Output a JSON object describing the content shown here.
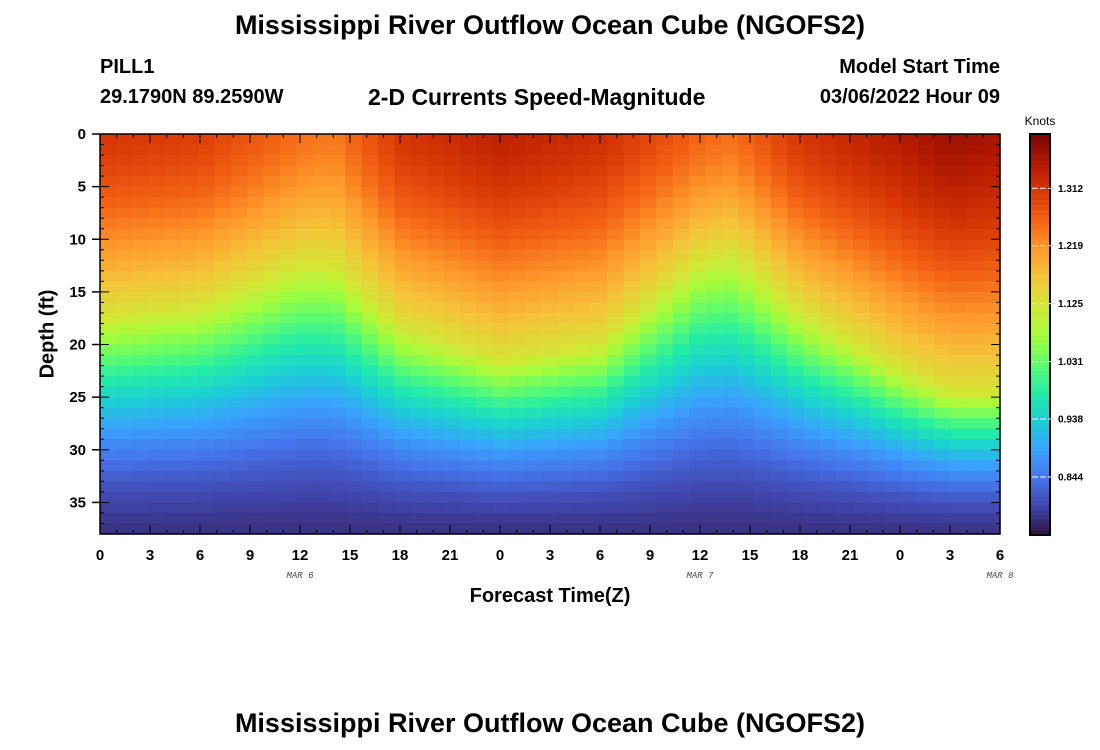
{
  "page": {
    "title": "Mississippi River Outflow Ocean Cube (NGOFS2)",
    "title_repeat": "Mississippi River Outflow Ocean Cube (NGOFS2)"
  },
  "header": {
    "station_id": "PILL1",
    "station_coords": "29.1790N  89.2590W",
    "plot_subtitle": "2-D Currents Speed-Magnitude",
    "model_start_label": "Model Start Time",
    "model_start_value": "03/06/2022 Hour 09"
  },
  "chart_data": {
    "type": "heatmap",
    "title": "2-D Currents Speed-Magnitude",
    "xlabel": "Forecast Time(Z)",
    "ylabel": "Depth (ft)",
    "x_tick_labels": [
      "0",
      "3",
      "6",
      "9",
      "12",
      "15",
      "18",
      "21",
      "0",
      "3",
      "6",
      "9",
      "12",
      "15",
      "18",
      "21",
      "0",
      "3",
      "6"
    ],
    "date_labels": [
      {
        "label": "MAR 6",
        "hour_index": 12
      },
      {
        "label": "MAR 7",
        "hour_index": 36
      },
      {
        "label": "MAR 8",
        "hour_index": 54
      }
    ],
    "x_range_hours": [
      0,
      54
    ],
    "y_ticks": [
      0,
      5,
      10,
      15,
      20,
      25,
      30,
      35
    ],
    "y_range_ft": [
      0,
      38
    ],
    "colorbar": {
      "unit": "Knots",
      "ticks": [
        1.312,
        1.219,
        1.125,
        1.031,
        0.938,
        0.844
      ],
      "min": 0.75,
      "max": 1.4,
      "colormap": [
        "#30123b",
        "#4145ab",
        "#4675ed",
        "#39a2fc",
        "#1bcfd4",
        "#24eca6",
        "#61fc6c",
        "#a4fc3b",
        "#d1e834",
        "#f3c63a",
        "#fe9b2d",
        "#f36315",
        "#d93806",
        "#b11901",
        "#7a0402"
      ]
    },
    "grid_resolution": {
      "time_steps": 55,
      "depth_levels": 38
    },
    "surface_speed_knots": {
      "hours": [
        0,
        6,
        12,
        14,
        18,
        24,
        30,
        36,
        38,
        42,
        48,
        51,
        54
      ],
      "values": [
        1.31,
        1.3,
        1.25,
        1.24,
        1.31,
        1.34,
        1.32,
        1.26,
        1.25,
        1.31,
        1.35,
        1.37,
        1.36
      ]
    },
    "iso_1125_knots_depth_ft": {
      "hours": [
        0,
        6,
        12,
        14,
        18,
        24,
        30,
        36,
        38,
        42,
        48,
        51,
        54
      ],
      "values": [
        17.5,
        16.5,
        12.5,
        12.5,
        18.5,
        21.5,
        20,
        12,
        11.5,
        17,
        22.5,
        24.5,
        24.5
      ]
    },
    "bottom_speed_knots": 0.78
  }
}
